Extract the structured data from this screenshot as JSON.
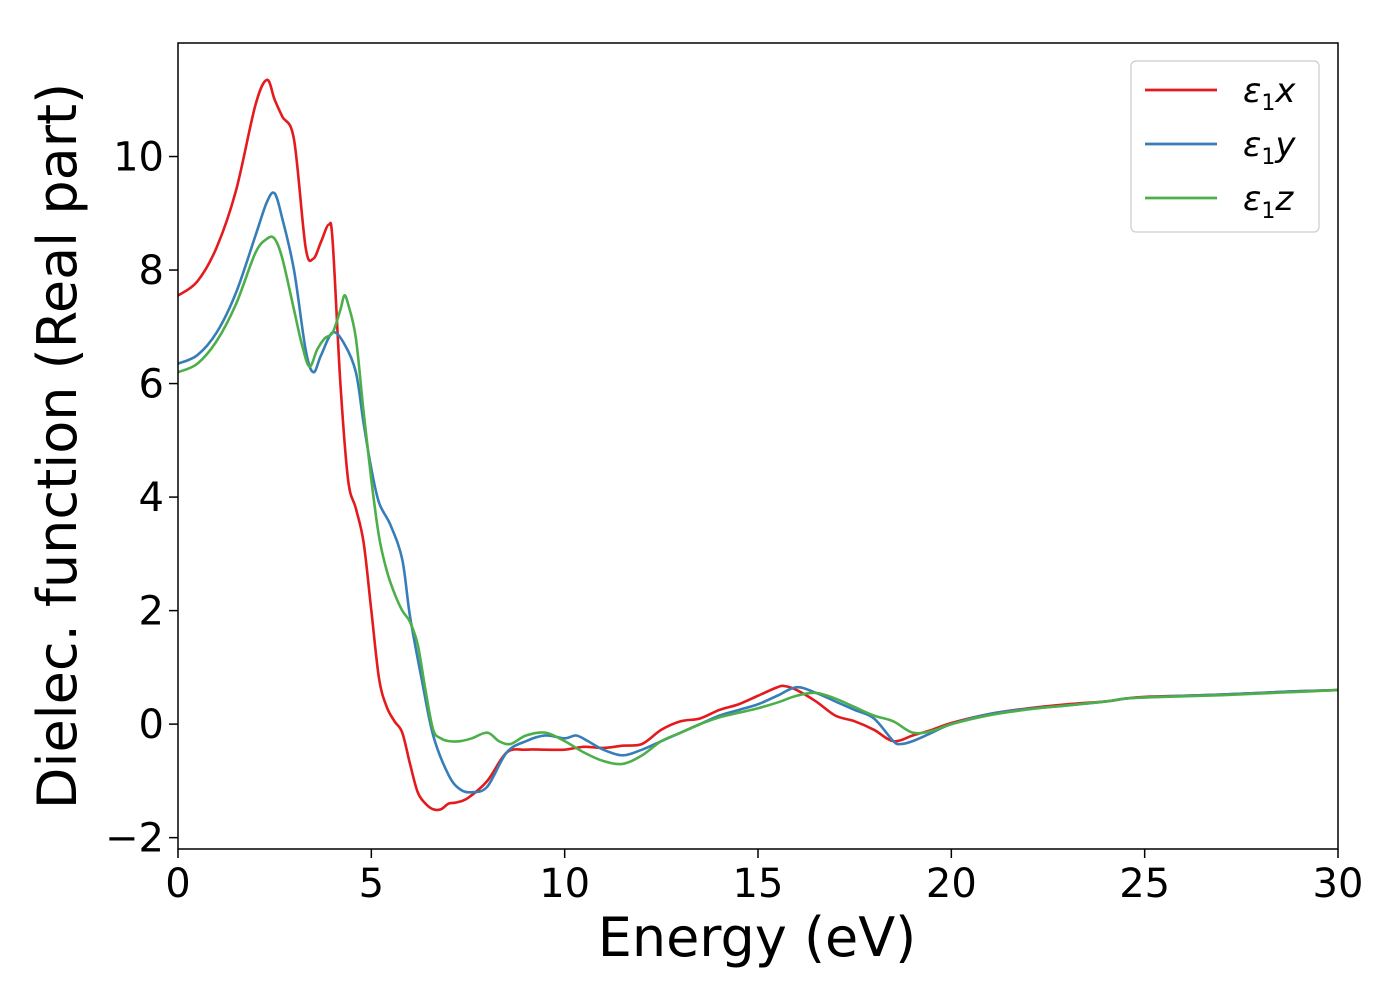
{
  "chart_data": {
    "type": "line",
    "title": "",
    "xlabel": "Energy (eV)",
    "ylabel": "Dielec. function (Real part)",
    "xlim": [
      0,
      30
    ],
    "ylim": [
      -2.2,
      12.0
    ],
    "xticks": [
      0,
      5,
      10,
      15,
      20,
      25,
      30
    ],
    "xtick_labels": [
      "0",
      "5",
      "10",
      "15",
      "20",
      "25",
      "30"
    ],
    "yticks": [
      -2,
      0,
      2,
      4,
      6,
      8,
      10
    ],
    "ytick_labels": [
      "−2",
      "0",
      "2",
      "4",
      "6",
      "8",
      "10"
    ],
    "grid": false,
    "legend_position": "top-right",
    "series": [
      {
        "name": "ε₁x",
        "name_base": "ε",
        "name_sub": "1",
        "name_suffix": "x",
        "color": "#e41a1c",
        "x": [
          0,
          0.5,
          1.0,
          1.5,
          2.0,
          2.3,
          2.5,
          2.7,
          3.0,
          3.3,
          3.5,
          3.7,
          3.9,
          4.0,
          4.2,
          4.4,
          4.6,
          4.8,
          5.0,
          5.2,
          5.4,
          5.6,
          5.8,
          6.0,
          6.2,
          6.4,
          6.6,
          6.8,
          7.0,
          7.2,
          7.5,
          8.0,
          8.5,
          9.0,
          9.5,
          10.0,
          10.5,
          11.0,
          11.5,
          12.0,
          12.5,
          13.0,
          13.5,
          14.0,
          14.5,
          15.0,
          15.5,
          15.7,
          16.0,
          16.5,
          17.0,
          17.5,
          18.0,
          18.5,
          19.0,
          19.5,
          20.0,
          21.0,
          22.0,
          23.0,
          24.0,
          24.5,
          25.0,
          26.0,
          27.0,
          28.0,
          29.0,
          30.0
        ],
        "y": [
          7.55,
          7.8,
          8.4,
          9.4,
          10.9,
          11.35,
          11.0,
          10.7,
          10.3,
          8.4,
          8.2,
          8.5,
          8.8,
          8.5,
          6.0,
          4.3,
          3.8,
          3.2,
          2.0,
          0.8,
          0.3,
          0.05,
          -0.15,
          -0.7,
          -1.2,
          -1.4,
          -1.5,
          -1.5,
          -1.4,
          -1.38,
          -1.3,
          -1.0,
          -0.5,
          -0.45,
          -0.45,
          -0.45,
          -0.4,
          -0.42,
          -0.38,
          -0.35,
          -0.1,
          0.05,
          0.1,
          0.25,
          0.35,
          0.5,
          0.65,
          0.67,
          0.6,
          0.4,
          0.15,
          0.05,
          -0.1,
          -0.3,
          -0.2,
          -0.1,
          0.02,
          0.18,
          0.28,
          0.35,
          0.4,
          0.45,
          0.48,
          0.5,
          0.52,
          0.55,
          0.58,
          0.6
        ]
      },
      {
        "name": "ε₁y",
        "name_base": "ε",
        "name_sub": "1",
        "name_suffix": "y",
        "color": "#377eb8",
        "x": [
          0,
          0.5,
          1.0,
          1.5,
          2.0,
          2.3,
          2.5,
          2.7,
          3.0,
          3.3,
          3.5,
          3.7,
          4.0,
          4.3,
          4.6,
          4.8,
          5.0,
          5.2,
          5.5,
          5.8,
          6.0,
          6.3,
          6.6,
          7.0,
          7.3,
          7.6,
          8.0,
          8.5,
          9.0,
          9.5,
          10.0,
          10.3,
          10.6,
          11.0,
          11.5,
          12.0,
          12.5,
          13.0,
          13.5,
          14.0,
          14.5,
          15.0,
          15.5,
          16.0,
          16.5,
          17.0,
          17.5,
          18.0,
          18.5,
          18.7,
          19.0,
          19.5,
          20.0,
          21.0,
          22.0,
          23.0,
          24.0,
          24.5,
          25.0,
          26.0,
          27.0,
          28.0,
          29.0,
          30.0
        ],
        "y": [
          6.35,
          6.5,
          6.9,
          7.6,
          8.6,
          9.2,
          9.35,
          8.9,
          8.0,
          6.6,
          6.2,
          6.5,
          6.9,
          6.7,
          6.2,
          5.3,
          4.5,
          3.9,
          3.5,
          2.9,
          1.9,
          0.8,
          -0.2,
          -0.9,
          -1.15,
          -1.2,
          -1.1,
          -0.5,
          -0.3,
          -0.2,
          -0.25,
          -0.2,
          -0.3,
          -0.45,
          -0.55,
          -0.45,
          -0.3,
          -0.15,
          0.0,
          0.15,
          0.25,
          0.35,
          0.5,
          0.65,
          0.55,
          0.4,
          0.25,
          0.1,
          -0.3,
          -0.35,
          -0.3,
          -0.15,
          0.0,
          0.18,
          0.27,
          0.33,
          0.4,
          0.45,
          0.47,
          0.5,
          0.52,
          0.55,
          0.58,
          0.6
        ]
      },
      {
        "name": "ε₁z",
        "name_base": "ε",
        "name_sub": "1",
        "name_suffix": "z",
        "color": "#4daf4a",
        "x": [
          0,
          0.5,
          1.0,
          1.5,
          2.0,
          2.3,
          2.5,
          2.7,
          3.0,
          3.2,
          3.4,
          3.6,
          3.8,
          4.0,
          4.2,
          4.3,
          4.4,
          4.6,
          4.8,
          5.0,
          5.2,
          5.4,
          5.6,
          5.8,
          6.0,
          6.2,
          6.4,
          6.6,
          6.8,
          7.0,
          7.3,
          7.6,
          8.0,
          8.3,
          8.6,
          9.0,
          9.5,
          10.0,
          10.5,
          11.0,
          11.5,
          12.0,
          12.5,
          13.0,
          13.5,
          14.0,
          14.5,
          15.0,
          15.5,
          16.0,
          16.5,
          17.0,
          17.5,
          18.0,
          18.5,
          19.0,
          19.5,
          20.0,
          21.0,
          22.0,
          23.0,
          24.0,
          24.5,
          25.0,
          26.0,
          27.0,
          28.0,
          29.0,
          30.0
        ],
        "y": [
          6.2,
          6.35,
          6.75,
          7.4,
          8.3,
          8.55,
          8.55,
          8.2,
          7.3,
          6.7,
          6.3,
          6.6,
          6.8,
          6.9,
          7.3,
          7.55,
          7.4,
          6.8,
          5.5,
          4.3,
          3.3,
          2.7,
          2.3,
          2.0,
          1.8,
          1.4,
          0.6,
          -0.1,
          -0.25,
          -0.3,
          -0.3,
          -0.25,
          -0.15,
          -0.3,
          -0.35,
          -0.2,
          -0.15,
          -0.3,
          -0.5,
          -0.65,
          -0.7,
          -0.55,
          -0.3,
          -0.15,
          0.0,
          0.12,
          0.2,
          0.28,
          0.38,
          0.5,
          0.55,
          0.45,
          0.3,
          0.15,
          0.05,
          -0.15,
          -0.12,
          0.0,
          0.16,
          0.26,
          0.33,
          0.4,
          0.45,
          0.47,
          0.49,
          0.51,
          0.54,
          0.57,
          0.6
        ]
      }
    ]
  }
}
